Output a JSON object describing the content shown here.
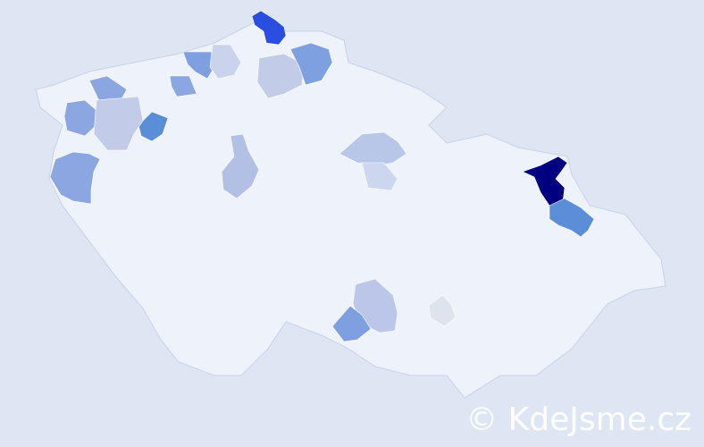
{
  "map": {
    "base_color": "#eef2fa",
    "border_color": "#c8d2e8",
    "background": "#dde6f2",
    "highlighted_regions": [
      {
        "color": "#000080"
      },
      {
        "color": "#5a8fd8"
      },
      {
        "color": "#2a4fe0"
      },
      {
        "color": "#5a8fd8"
      },
      {
        "color": "#8ba6e0"
      },
      {
        "color": "#8ba6e0"
      },
      {
        "color": "#8ba6e0"
      },
      {
        "color": "#c2cce8"
      },
      {
        "color": "#7ea0e0"
      },
      {
        "color": "#cad3ec"
      },
      {
        "color": "#8ba6e0"
      },
      {
        "color": "#c2cce8"
      },
      {
        "color": "#7ea0e0"
      },
      {
        "color": "#b3c0e6"
      },
      {
        "color": "#b8c6e8"
      },
      {
        "color": "#ccd6ee"
      },
      {
        "color": "#bcc6e8"
      },
      {
        "color": "#7ea0e0"
      },
      {
        "color": "#dfe3ee"
      }
    ]
  },
  "watermark": "© KdeJsme.cz"
}
